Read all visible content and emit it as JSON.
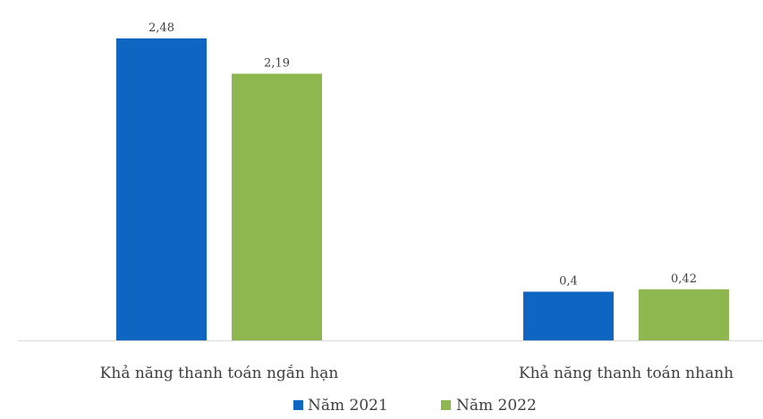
{
  "chart_data": {
    "type": "bar",
    "categories": [
      "Khả năng thanh toán ngắn hạn",
      "Khả năng thanh toán nhanh"
    ],
    "series": [
      {
        "name": "Năm 2021",
        "values": [
          2.48,
          0.4
        ],
        "labels": [
          "2,48",
          "0,4"
        ],
        "color": "#0f66c2"
      },
      {
        "name": "Năm 2022",
        "values": [
          2.19,
          0.42
        ],
        "labels": [
          "2,19",
          "0,42"
        ],
        "color": "#8fb74f"
      }
    ],
    "title": "",
    "xlabel": "",
    "ylabel": "",
    "ylim": [
      0,
      2.5
    ],
    "grid": false,
    "legend_position": "bottom",
    "axis_color": "#d9d9d9"
  }
}
